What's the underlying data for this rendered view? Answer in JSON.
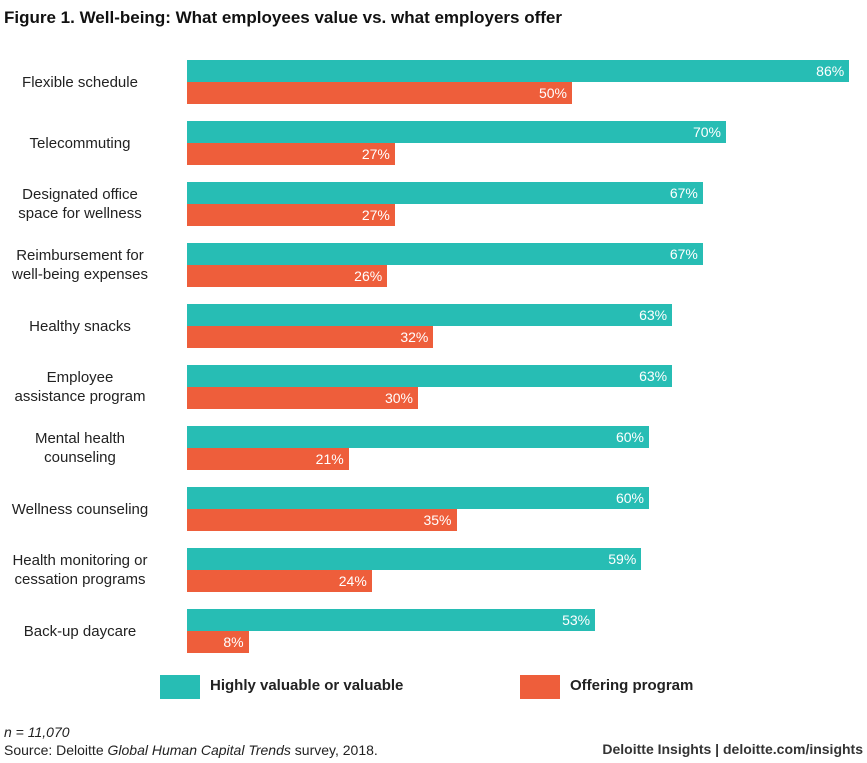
{
  "chart_data": {
    "type": "bar",
    "orientation": "horizontal",
    "title": "Figure 1. Well-being: What employees value vs. what employers offer",
    "categories": [
      "Flexible schedule",
      "Telecommuting",
      "Designated office space for wellness",
      "Reimbursement for well-being expenses",
      "Healthy snacks",
      "Employee assistance program",
      "Mental health counseling",
      "Wellness counseling",
      "Health monitoring or cessation programs",
      "Back-up daycare"
    ],
    "category_lines": [
      [
        "Flexible schedule"
      ],
      [
        "Telecommuting"
      ],
      [
        "Designated office",
        "space for wellness"
      ],
      [
        "Reimbursement for",
        "well-being expenses"
      ],
      [
        "Healthy snacks"
      ],
      [
        "Employee",
        "assistance program"
      ],
      [
        "Mental health",
        "counseling"
      ],
      [
        "Wellness counseling"
      ],
      [
        "Health monitoring or",
        "cessation programs"
      ],
      [
        "Back-up daycare"
      ]
    ],
    "series": [
      {
        "name": "Highly valuable or valuable",
        "color": "#27BDB4",
        "values": [
          86,
          70,
          67,
          67,
          63,
          63,
          60,
          60,
          59,
          53
        ]
      },
      {
        "name": "Offering program",
        "color": "#EE5E3B",
        "values": [
          50,
          27,
          27,
          26,
          32,
          30,
          21,
          35,
          24,
          8
        ]
      }
    ],
    "unit": "%",
    "xlim": [
      0,
      100
    ],
    "legend": "bottom"
  },
  "notes": {
    "n": "n = 11,070",
    "source_prefix": "Source: Deloitte ",
    "source_italic": "Global Human Capital Trends",
    "source_suffix": " survey, 2018."
  },
  "credit": "Deloitte Insights | deloitte.com/insights"
}
